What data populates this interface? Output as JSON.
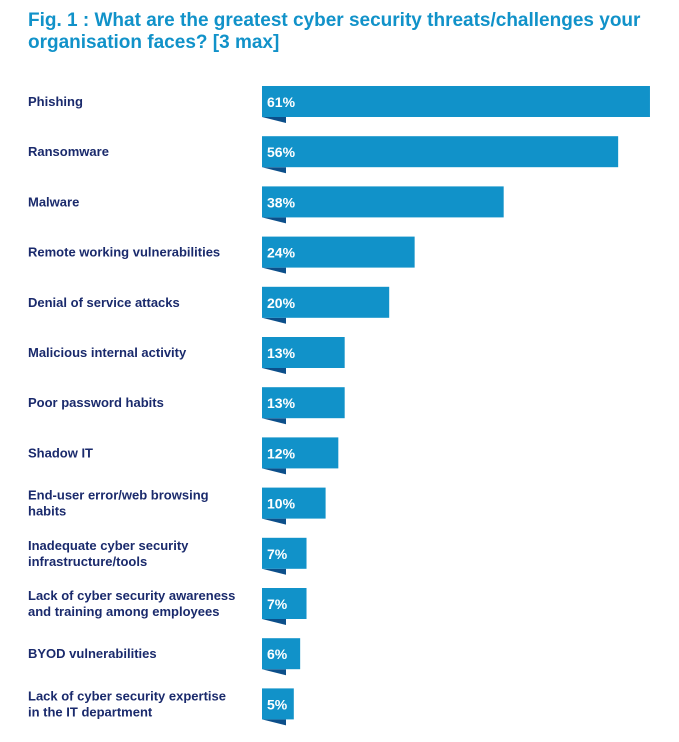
{
  "chart_data": {
    "type": "bar",
    "orientation": "horizontal",
    "title": "Fig. 1 : What are the greatest cyber security threats/challenges your organisation faces? [3 max]",
    "categories": [
      [
        "Phishing"
      ],
      [
        "Ransomware"
      ],
      [
        "Malware"
      ],
      [
        "Remote working vulnerabilities"
      ],
      [
        "Denial of service attacks"
      ],
      [
        "Malicious internal activity"
      ],
      [
        "Poor password habits"
      ],
      [
        "Shadow IT"
      ],
      [
        "End-user error/web browsing",
        "habits"
      ],
      [
        "Inadequate cyber security",
        "infrastructure/tools"
      ],
      [
        "Lack of cyber security awareness",
        "and training among employees"
      ],
      [
        "BYOD vulnerabilities"
      ],
      [
        "Lack of cyber security expertise",
        "in the IT department"
      ]
    ],
    "values": [
      61,
      56,
      38,
      24,
      20,
      13,
      13,
      12,
      10,
      7,
      7,
      6,
      5
    ],
    "value_labels": [
      "61%",
      "56%",
      "38%",
      "24%",
      "20%",
      "13%",
      "13%",
      "12%",
      "10%",
      "7%",
      "7%",
      "6%",
      "5%"
    ],
    "unit": "%",
    "bar_color": "#1192c9",
    "bar_shadow_color": "#0c4f8a",
    "label_color": "#1a2a6c",
    "title_color": "#1192c9",
    "grid": false,
    "legend": "none"
  }
}
